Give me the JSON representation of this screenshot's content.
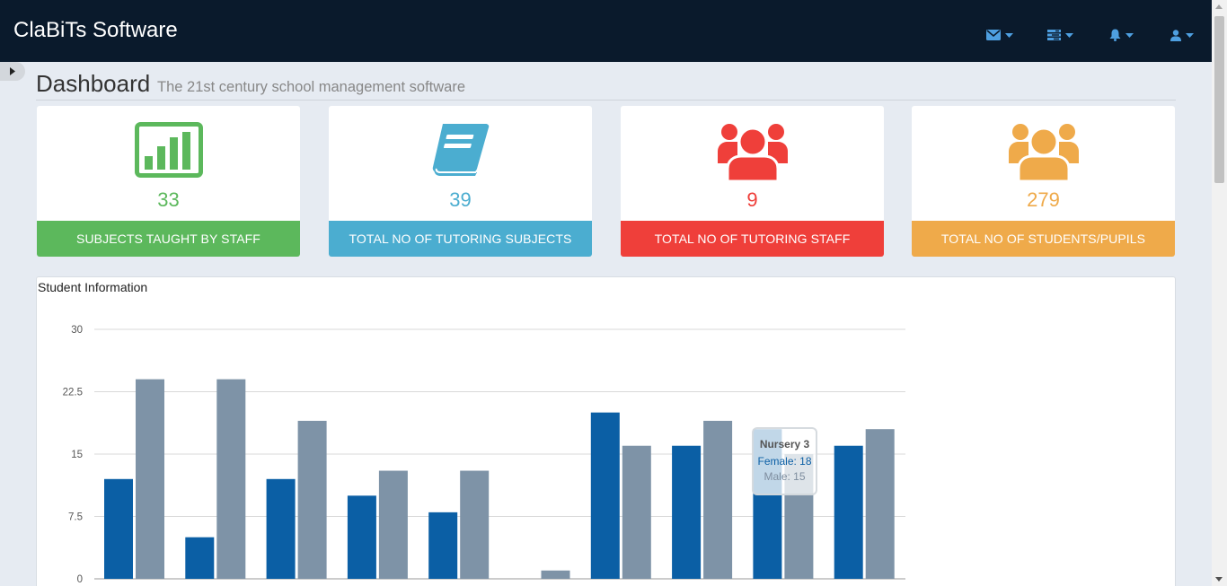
{
  "app": {
    "brand": "ClaBiTs Software"
  },
  "nav": {
    "icons": [
      {
        "name": "envelope-icon"
      },
      {
        "name": "tasks-icon"
      },
      {
        "name": "bell-icon"
      },
      {
        "name": "user-icon"
      }
    ],
    "icon_color": "#4e9fe0"
  },
  "header": {
    "title": "Dashboard",
    "subtitle": "The 21st century school management software"
  },
  "cards": [
    {
      "icon": "bar-chart-icon",
      "value": "33",
      "label": "SUBJECTS TAUGHT BY STAFF",
      "color": "#5cb85c"
    },
    {
      "icon": "book-icon",
      "value": "39",
      "label": "TOTAL NO OF TUTORING SUBJECTS",
      "color": "#4badd0"
    },
    {
      "icon": "users-icon",
      "value": "9",
      "label": "TOTAL NO OF TUTORING STAFF",
      "color": "#ef3f3a"
    },
    {
      "icon": "users-icon",
      "value": "279",
      "label": "TOTAL NO OF STUDENTS/PUPILS",
      "color": "#efaa4a"
    }
  ],
  "panel": {
    "title": "Student Information"
  },
  "chart_data": {
    "type": "bar",
    "categories": [
      "",
      "",
      "",
      "",
      "",
      "",
      "",
      "",
      "Nursery 3",
      ""
    ],
    "series": [
      {
        "name": "Female",
        "color": "#0b5fa5",
        "values": [
          12,
          5,
          12,
          10,
          8,
          0,
          20,
          16,
          18,
          16
        ]
      },
      {
        "name": "Male",
        "color": "#7e93a7",
        "values": [
          24,
          24,
          19,
          13,
          13,
          1,
          16,
          19,
          15,
          18
        ]
      }
    ],
    "yticks": [
      "0",
      "7.5",
      "15",
      "22.5",
      "30"
    ],
    "ylim": [
      0,
      30
    ],
    "grid": true
  },
  "tooltip": {
    "title": "Nursery 3",
    "female": "Female: 18",
    "male": "Male: 15"
  }
}
